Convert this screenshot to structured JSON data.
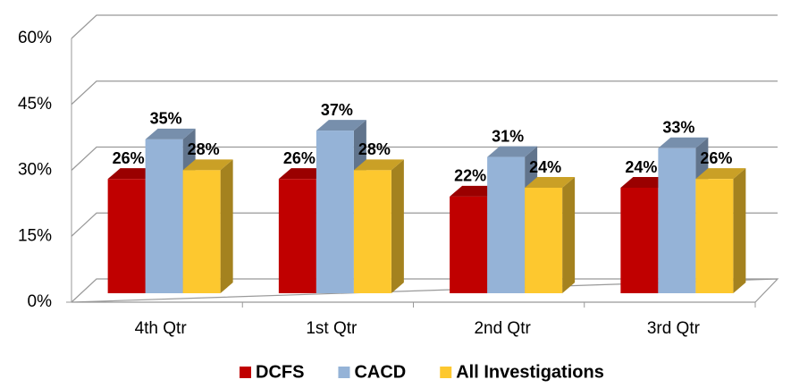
{
  "chart_data": {
    "type": "bar3d",
    "categories": [
      "4th Qtr",
      "1st Qtr",
      "2nd Qtr",
      "3rd Qtr"
    ],
    "series": [
      {
        "name": "DCFS",
        "color": "#c00000",
        "values": [
          26,
          26,
          22,
          24
        ],
        "value_labels": [
          "26%",
          "26%",
          "22%",
          "24%"
        ]
      },
      {
        "name": "CACD",
        "color": "#95b3d7",
        "values": [
          35,
          37,
          31,
          33
        ],
        "value_labels": [
          "35%",
          "37%",
          "31%",
          "33%"
        ]
      },
      {
        "name": "All Investigations",
        "color": "#fdc82f",
        "values": [
          28,
          28,
          24,
          26
        ],
        "value_labels": [
          "28%",
          "28%",
          "24%",
          "26%"
        ]
      }
    ],
    "ylim": [
      0,
      60
    ],
    "yticks": [
      {
        "value": 0,
        "label": "0%"
      },
      {
        "value": 15,
        "label": "15%"
      },
      {
        "value": 30,
        "label": "30%"
      },
      {
        "value": 45,
        "label": "45%"
      },
      {
        "value": 60,
        "label": "60%"
      }
    ],
    "grid": true,
    "legend": "bottom"
  }
}
